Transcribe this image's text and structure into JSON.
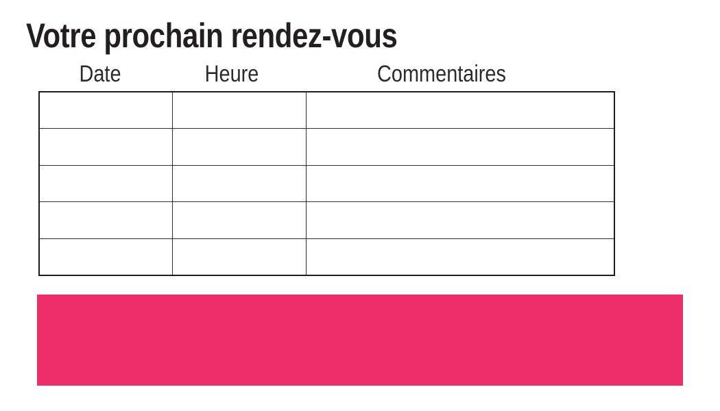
{
  "page": {
    "title": "Votre prochain rendez-vous"
  },
  "appointments_table": {
    "headers": [
      "Date",
      "Heure",
      "Commentaires"
    ],
    "row_count": 5,
    "column_count": 3,
    "rows": [
      [
        "",
        "",
        ""
      ],
      [
        "",
        "",
        ""
      ],
      [
        "",
        "",
        ""
      ],
      [
        "",
        "",
        ""
      ],
      [
        "",
        "",
        ""
      ]
    ]
  },
  "colors": {
    "accent_pink": "#ED2E6B",
    "text_dark": "#231F20",
    "table_border": "#1C1C1C"
  }
}
